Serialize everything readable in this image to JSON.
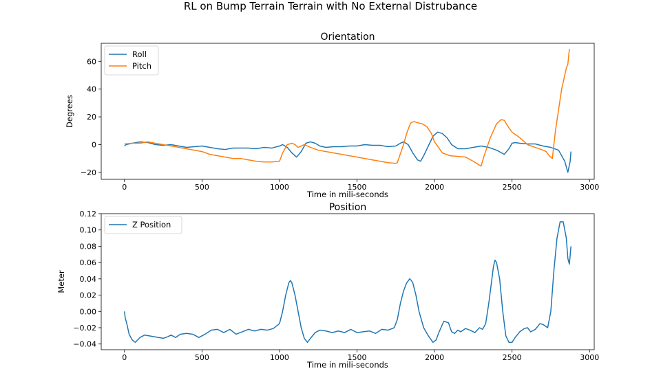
{
  "figure": {
    "suptitle": "RL on Bump Terrain Terrain with No External Distrubance"
  },
  "colors": {
    "blue": "#1f77b4",
    "orange": "#ff7f0e"
  },
  "chart_data": [
    {
      "type": "line",
      "title": "Orientation",
      "xlabel": "Time in mili-seconds",
      "ylabel": "Degrees",
      "xlim": [
        -150,
        3030
      ],
      "ylim": [
        -25,
        73
      ],
      "xticks": [
        0,
        500,
        1000,
        1500,
        2000,
        2500,
        3000
      ],
      "yticks": [
        -20,
        0,
        20,
        40,
        60
      ],
      "ytick_labels": [
        "−20",
        "0",
        "20",
        "40",
        "60"
      ],
      "grid": false,
      "legend": "top-left",
      "series": [
        {
          "name": "Roll",
          "color": "#1f77b4",
          "x": [
            0,
            10,
            50,
            100,
            150,
            200,
            250,
            300,
            350,
            400,
            450,
            500,
            550,
            600,
            650,
            700,
            750,
            800,
            850,
            900,
            950,
            1000,
            1020,
            1050,
            1080,
            1110,
            1140,
            1170,
            1200,
            1230,
            1260,
            1300,
            1350,
            1400,
            1450,
            1500,
            1550,
            1600,
            1650,
            1700,
            1750,
            1780,
            1800,
            1830,
            1860,
            1890,
            1910,
            1930,
            1960,
            1990,
            2020,
            2050,
            2080,
            2110,
            2150,
            2200,
            2250,
            2300,
            2350,
            2400,
            2450,
            2480,
            2500,
            2520,
            2550,
            2600,
            2650,
            2700,
            2750,
            2800,
            2840,
            2860,
            2875,
            2880
          ],
          "y": [
            -1,
            0,
            1,
            2,
            1.5,
            0,
            -0.5,
            0,
            -1,
            -2,
            -1.5,
            -1,
            -2,
            -3,
            -3.5,
            -2.5,
            -2.5,
            -2.5,
            -3,
            -2,
            -2.5,
            -1,
            0,
            -2,
            -6,
            -9,
            -5,
            1,
            2,
            1,
            -1,
            -2,
            -1.5,
            -1.5,
            -1,
            -1,
            0,
            -0.5,
            -0.5,
            -1.5,
            -1,
            1,
            2,
            0,
            -6,
            -11,
            -12,
            -8,
            -1,
            6,
            9,
            8,
            5,
            0,
            -3,
            -3,
            -2,
            -1,
            -2,
            -4,
            -7,
            -3,
            1,
            1.5,
            1,
            0.5,
            0.5,
            -1,
            -2,
            -4,
            -12,
            -20,
            -12,
            -5
          ]
        },
        {
          "name": "Pitch",
          "color": "#ff7f0e",
          "x": [
            0,
            50,
            100,
            150,
            200,
            250,
            300,
            400,
            500,
            550,
            600,
            650,
            700,
            750,
            800,
            850,
            900,
            950,
            1000,
            1020,
            1050,
            1080,
            1100,
            1120,
            1140,
            1160,
            1200,
            1250,
            1300,
            1400,
            1500,
            1600,
            1700,
            1750,
            1760,
            1800,
            1820,
            1840,
            1850,
            1870,
            1900,
            1920,
            1950,
            1980,
            2000,
            2050,
            2100,
            2200,
            2250,
            2300,
            2320,
            2360,
            2400,
            2430,
            2450,
            2480,
            2500,
            2550,
            2600,
            2650,
            2700,
            2720,
            2740,
            2760,
            2780,
            2800,
            2820,
            2840,
            2850,
            2860,
            2870
          ],
          "y": [
            0.5,
            1,
            1,
            2,
            1,
            0,
            -1,
            -3,
            -5,
            -7,
            -8,
            -9,
            -10,
            -10,
            -11,
            -12,
            -12.5,
            -12.5,
            -12,
            -6,
            0,
            1,
            0,
            -2,
            -1,
            0,
            -2,
            -4,
            -5,
            -7,
            -9,
            -11,
            -13,
            -13.5,
            -13,
            0,
            8,
            14,
            16,
            16.5,
            15.5,
            15,
            13,
            8,
            2,
            -6,
            -8,
            -9,
            -12,
            -15.5,
            -8,
            5,
            15,
            18,
            17.5,
            12,
            9,
            5,
            0,
            -2,
            -4,
            -5,
            -8,
            -10,
            10,
            25,
            40,
            50,
            55,
            58,
            69
          ]
        }
      ]
    },
    {
      "type": "line",
      "title": "Position",
      "xlabel": "Time in mili-seconds",
      "ylabel": "Meter",
      "xlim": [
        -150,
        3030
      ],
      "ylim": [
        -0.047,
        0.12
      ],
      "xticks": [
        0,
        500,
        1000,
        1500,
        2000,
        2500,
        3000
      ],
      "yticks": [
        -0.04,
        -0.02,
        0.0,
        0.02,
        0.04,
        0.06,
        0.08,
        0.1,
        0.12
      ],
      "ytick_labels": [
        "−0.04",
        "−0.02",
        "0.00",
        "0.02",
        "0.04",
        "0.06",
        "0.08",
        "0.10",
        "0.12"
      ],
      "grid": false,
      "legend": "top-left",
      "series": [
        {
          "name": "Z Position",
          "color": "#1f77b4",
          "x": [
            0,
            5,
            15,
            30,
            50,
            70,
            100,
            130,
            160,
            190,
            220,
            250,
            280,
            300,
            330,
            360,
            400,
            440,
            480,
            520,
            560,
            600,
            640,
            680,
            720,
            760,
            800,
            840,
            880,
            920,
            960,
            1000,
            1020,
            1040,
            1060,
            1070,
            1080,
            1100,
            1120,
            1140,
            1160,
            1180,
            1200,
            1230,
            1260,
            1300,
            1340,
            1380,
            1420,
            1460,
            1500,
            1540,
            1580,
            1620,
            1660,
            1700,
            1740,
            1760,
            1780,
            1800,
            1820,
            1840,
            1850,
            1860,
            1880,
            1900,
            1930,
            1960,
            1990,
            2010,
            2030,
            2060,
            2090,
            2110,
            2130,
            2150,
            2170,
            2200,
            2230,
            2260,
            2290,
            2310,
            2330,
            2350,
            2370,
            2380,
            2390,
            2400,
            2420,
            2440,
            2460,
            2480,
            2500,
            2520,
            2550,
            2580,
            2600,
            2620,
            2650,
            2680,
            2700,
            2730,
            2750,
            2770,
            2790,
            2810,
            2830,
            2850,
            2860,
            2870,
            2880
          ],
          "y": [
            0.0,
            -0.008,
            -0.015,
            -0.028,
            -0.035,
            -0.038,
            -0.032,
            -0.029,
            -0.03,
            -0.031,
            -0.032,
            -0.033,
            -0.031,
            -0.029,
            -0.032,
            -0.028,
            -0.027,
            -0.028,
            -0.032,
            -0.028,
            -0.023,
            -0.022,
            -0.026,
            -0.022,
            -0.028,
            -0.025,
            -0.022,
            -0.024,
            -0.022,
            -0.023,
            -0.021,
            -0.015,
            0.0,
            0.02,
            0.035,
            0.038,
            0.035,
            0.02,
            0.0,
            -0.02,
            -0.033,
            -0.038,
            -0.033,
            -0.026,
            -0.023,
            -0.024,
            -0.026,
            -0.024,
            -0.026,
            -0.022,
            -0.026,
            -0.025,
            -0.024,
            -0.027,
            -0.022,
            -0.023,
            -0.02,
            -0.01,
            0.01,
            0.025,
            0.035,
            0.04,
            0.038,
            0.035,
            0.02,
            0.0,
            -0.02,
            -0.03,
            -0.038,
            -0.035,
            -0.025,
            -0.012,
            -0.014,
            -0.025,
            -0.027,
            -0.023,
            -0.025,
            -0.021,
            -0.023,
            -0.026,
            -0.02,
            -0.022,
            -0.015,
            0.01,
            0.04,
            0.055,
            0.063,
            0.06,
            0.04,
            0.0,
            -0.03,
            -0.038,
            -0.038,
            -0.032,
            -0.025,
            -0.021,
            -0.02,
            -0.025,
            -0.022,
            -0.015,
            -0.016,
            -0.02,
            0.0,
            0.05,
            0.09,
            0.11,
            0.11,
            0.09,
            0.065,
            0.058,
            0.08
          ]
        }
      ]
    }
  ]
}
